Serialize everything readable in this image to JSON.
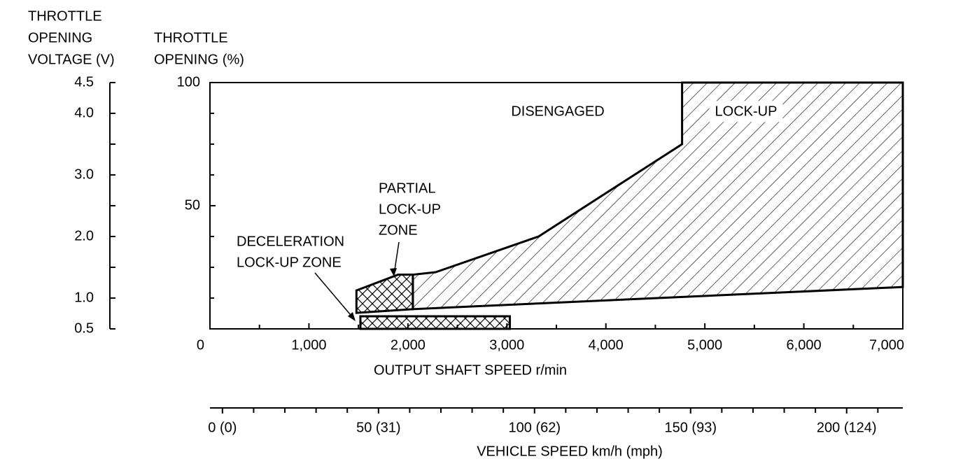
{
  "chart_data": {
    "type": "region",
    "y2_title": [
      "THROTTLE",
      "OPENING",
      "VOLTAGE (V)"
    ],
    "y_title": [
      "THROTTLE",
      "OPENING (%)"
    ],
    "x_title": "OUTPUT SHAFT SPEED r/min",
    "x2_title": "VEHICLE SPEED km/h (mph)",
    "xlim": [
      0,
      7000
    ],
    "xticks": [
      0,
      {
        "value": 1000,
        "label": "1,000"
      },
      {
        "value": 2000,
        "label": "2,000"
      },
      {
        "value": 3000,
        "label": "3,000"
      },
      {
        "value": 4000,
        "label": "4,000"
      },
      {
        "value": 5000,
        "label": "5,000"
      },
      {
        "value": 6000,
        "label": "6,000"
      },
      {
        "value": 7000,
        "label": "7,000"
      }
    ],
    "xminorticks": [
      500,
      1500,
      2500,
      3500,
      4500,
      5500,
      6500
    ],
    "ylim": [
      0,
      100
    ],
    "yticks": [
      50,
      100
    ],
    "yminorticks": [
      12.5,
      25,
      37.5,
      62.5,
      75,
      87.5
    ],
    "y2lim": [
      0.5,
      4.5
    ],
    "y2ticks": [
      0.5,
      {
        "value": 1,
        "label": "1.0"
      },
      {
        "value": 2,
        "label": "2.0"
      },
      {
        "value": 3,
        "label": "3.0"
      },
      {
        "value": 4,
        "label": "4.0"
      },
      4.5
    ],
    "y2minorticks": [
      1.5,
      2.5,
      3.5
    ],
    "x2lim": [
      -4,
      218
    ],
    "x2ticks": [
      {
        "value": 0,
        "label": "0 (0)"
      },
      {
        "value": 50,
        "label": "50 (31)"
      },
      {
        "value": 100,
        "label": "100 (62)"
      },
      {
        "value": 150,
        "label": "150 (93)"
      },
      {
        "value": 200,
        "label": "200 (124)"
      }
    ],
    "x2minorticks": [
      10,
      20,
      30,
      40,
      60,
      70,
      80,
      90,
      110,
      120,
      130,
      140,
      160,
      170,
      180,
      190,
      210
    ],
    "annotation": "DISENGAGED",
    "regions": [
      {
        "name": [
          "LOCK-UP"
        ],
        "pattern": "diagonal",
        "x": [
          2050,
          2050,
          2280,
          3320,
          4770,
          4770,
          7000,
          7000
        ],
        "y": [
          8,
          22,
          23,
          37.5,
          75,
          100,
          100,
          17
        ]
      },
      {
        "name": [
          "PARTIAL",
          "LOCK-UP",
          "ZONE"
        ],
        "pattern": "cross",
        "x": [
          1480,
          1480,
          1900,
          2050,
          2050
        ],
        "y": [
          6.5,
          15.6,
          22,
          22,
          8
        ]
      },
      {
        "name": [
          "DECELERATION",
          "LOCK-UP ZONE"
        ],
        "pattern": "cross",
        "x": [
          1520,
          1520,
          3030,
          3030
        ],
        "y": [
          0,
          5.1,
          5.1,
          0
        ]
      }
    ]
  }
}
